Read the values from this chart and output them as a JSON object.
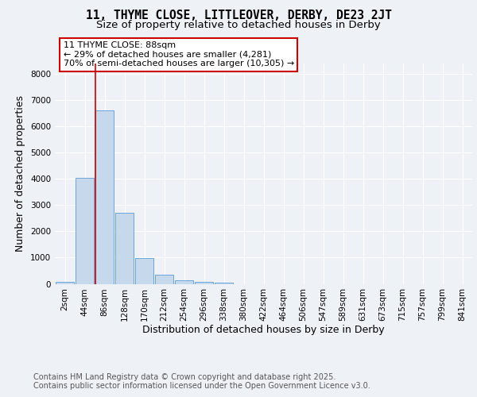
{
  "title_line1": "11, THYME CLOSE, LITTLEOVER, DERBY, DE23 2JT",
  "title_line2": "Size of property relative to detached houses in Derby",
  "xlabel": "Distribution of detached houses by size in Derby",
  "ylabel": "Number of detached properties",
  "bar_labels": [
    "2sqm",
    "44sqm",
    "86sqm",
    "128sqm",
    "170sqm",
    "212sqm",
    "254sqm",
    "296sqm",
    "338sqm",
    "380sqm",
    "422sqm",
    "464sqm",
    "506sqm",
    "547sqm",
    "589sqm",
    "631sqm",
    "673sqm",
    "715sqm",
    "757sqm",
    "799sqm",
    "841sqm"
  ],
  "bar_values": [
    75,
    4050,
    6600,
    2700,
    975,
    340,
    140,
    75,
    50,
    0,
    0,
    0,
    0,
    0,
    0,
    0,
    0,
    0,
    0,
    0,
    0
  ],
  "bar_color": "#c5d8ec",
  "bar_edge_color": "#5b9bd5",
  "ylim": [
    0,
    8400
  ],
  "yticks": [
    0,
    1000,
    2000,
    3000,
    4000,
    5000,
    6000,
    7000,
    8000
  ],
  "annotation_text": "11 THYME CLOSE: 88sqm\n← 29% of detached houses are smaller (4,281)\n70% of semi-detached houses are larger (10,305) →",
  "annotation_box_color": "#ffffff",
  "annotation_box_edge": "#cc0000",
  "property_line_color": "#cc0000",
  "footer_line1": "Contains HM Land Registry data © Crown copyright and database right 2025.",
  "footer_line2": "Contains public sector information licensed under the Open Government Licence v3.0.",
  "bg_color": "#eef2f7",
  "plot_bg_color": "#eef2f7",
  "grid_color": "#ffffff",
  "title_fontsize": 10.5,
  "subtitle_fontsize": 9.5,
  "axis_label_fontsize": 9,
  "tick_fontsize": 7.5,
  "footer_fontsize": 7,
  "annotation_fontsize": 8
}
